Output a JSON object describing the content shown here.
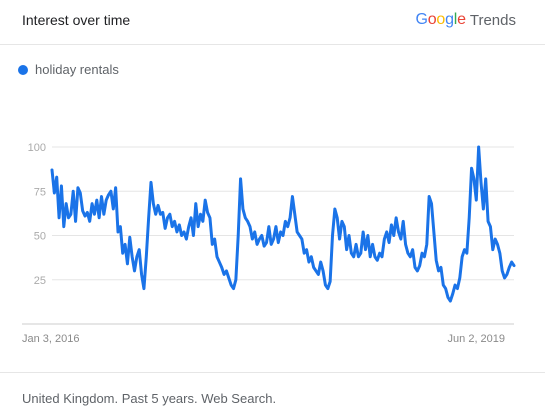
{
  "header": {
    "title": "Interest over time",
    "brand_google": "Google",
    "brand_trends": "Trends",
    "google_colors": [
      "#4285F4",
      "#EA4335",
      "#FBBC05",
      "#4285F4",
      "#34A853",
      "#EA4335"
    ]
  },
  "legend": {
    "label": "holiday rentals",
    "color": "#1a73e8"
  },
  "footer": {
    "note": "United Kingdom. Past 5 years. Web Search."
  },
  "chart_data": {
    "type": "line",
    "title": "Interest over time",
    "xlabel": "",
    "ylabel": "",
    "ylim": [
      0,
      100
    ],
    "yticks": [
      25,
      50,
      75,
      100
    ],
    "xticklabels": [
      "Jan 3, 2016",
      "Jun 2, 2019"
    ],
    "xtick_index": [
      0,
      180
    ],
    "grid": true,
    "series": [
      {
        "name": "holiday rentals",
        "color": "#1a73e8",
        "values": [
          87,
          74,
          83,
          60,
          78,
          55,
          68,
          60,
          62,
          75,
          58,
          77,
          74,
          64,
          61,
          63,
          58,
          68,
          62,
          70,
          60,
          72,
          62,
          70,
          73,
          75,
          65,
          77,
          52,
          55,
          40,
          45,
          34,
          49,
          38,
          30,
          38,
          42,
          28,
          20,
          38,
          60,
          80,
          68,
          62,
          67,
          62,
          63,
          54,
          60,
          62,
          55,
          58,
          52,
          56,
          50,
          52,
          48,
          55,
          60,
          50,
          68,
          55,
          62,
          58,
          70,
          63,
          60,
          45,
          48,
          38,
          35,
          32,
          28,
          30,
          26,
          22,
          20,
          25,
          50,
          82,
          65,
          60,
          58,
          55,
          48,
          52,
          45,
          48,
          50,
          44,
          46,
          55,
          45,
          48,
          55,
          46,
          52,
          50,
          58,
          55,
          60,
          72,
          62,
          52,
          50,
          48,
          40,
          42,
          35,
          38,
          32,
          30,
          28,
          35,
          30,
          22,
          20,
          24,
          50,
          65,
          60,
          48,
          58,
          55,
          42,
          50,
          40,
          38,
          45,
          38,
          40,
          52,
          42,
          50,
          38,
          45,
          38,
          36,
          40,
          38,
          48,
          52,
          46,
          56,
          50,
          60,
          52,
          48,
          58,
          45,
          40,
          38,
          42,
          32,
          30,
          33,
          40,
          38,
          45,
          72,
          68,
          52,
          36,
          30,
          32,
          22,
          20,
          15,
          13,
          17,
          22,
          20,
          26,
          38,
          42,
          40,
          60,
          88,
          82,
          70,
          100,
          80,
          65,
          82,
          58,
          55,
          42,
          48,
          45,
          40,
          30,
          26,
          28,
          32,
          35,
          33
        ]
      }
    ]
  }
}
